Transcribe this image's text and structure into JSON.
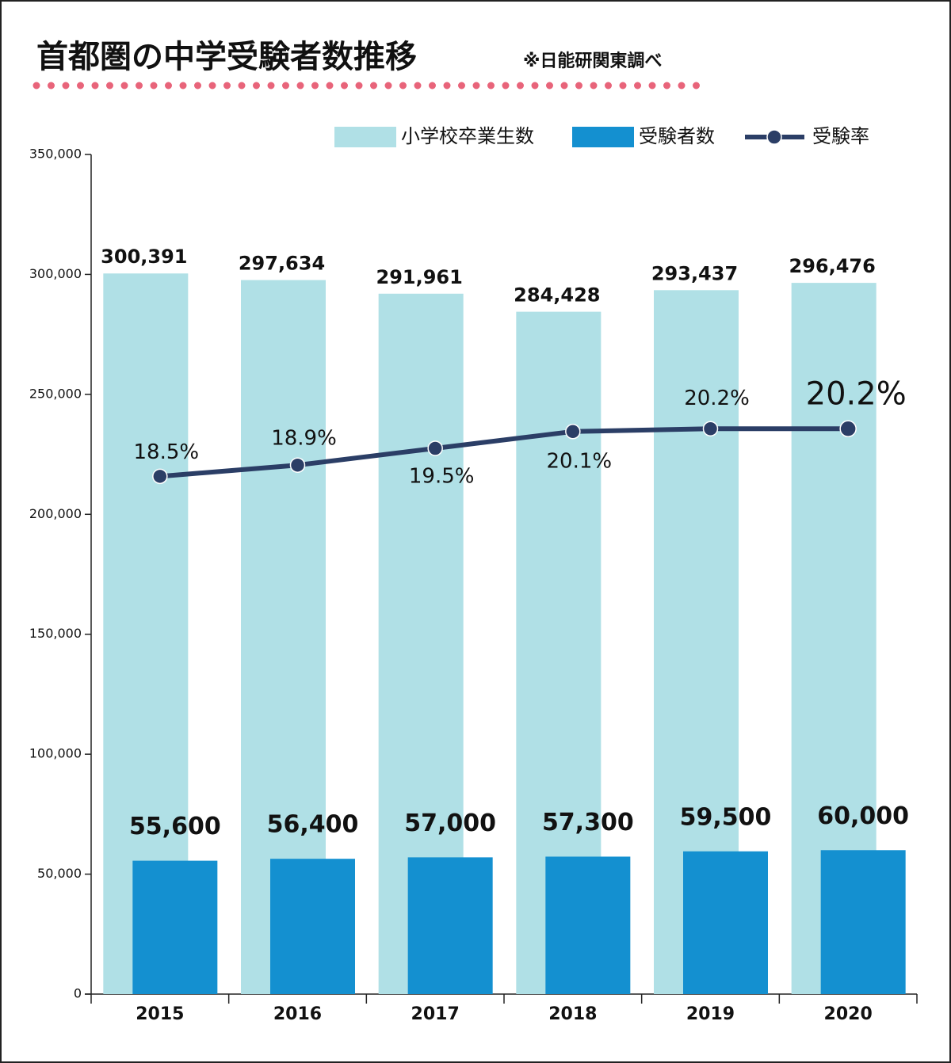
{
  "chart_data": {
    "type": "bar-line",
    "title": "首都圏の中学受験者数推移",
    "subtitle": "※日能研関東調べ",
    "categories": [
      "2015",
      "2016",
      "2017",
      "2018",
      "2019",
      "2020"
    ],
    "series": [
      {
        "name": "小学校卒業生数",
        "type": "bar",
        "color": "#b0e0e6",
        "values": [
          300391,
          297634,
          291961,
          284428,
          293437,
          296476
        ],
        "value_labels": [
          "300,391",
          "297,634",
          "291,961",
          "284,428",
          "293,437",
          "296,476"
        ]
      },
      {
        "name": "受験者数",
        "type": "bar",
        "color": "#1490d0",
        "values": [
          55600,
          56400,
          57000,
          57300,
          59500,
          60000
        ],
        "value_labels": [
          "55,600",
          "56,400",
          "57,000",
          "57,300",
          "59,500",
          "60,000"
        ]
      },
      {
        "name": "受験率",
        "type": "line",
        "axis": "y2",
        "color": "#2b3e66",
        "values": [
          18.5,
          18.9,
          19.5,
          20.1,
          20.2,
          20.2
        ],
        "value_labels": [
          "18.5%",
          "18.9%",
          "19.5%",
          "20.1%",
          "20.2%",
          "20.2%"
        ]
      }
    ],
    "ylim": [
      0,
      350000
    ],
    "yticks": [
      0,
      {
        "value": 50000,
        "label": "50,000"
      },
      {
        "value": 100000,
        "label": "100,000"
      },
      {
        "value": 150000,
        "label": "150,000"
      },
      {
        "value": 200000,
        "label": "200,000"
      },
      {
        "value": 250000,
        "label": "250,000"
      },
      {
        "value": 300000,
        "label": "300,000"
      },
      {
        "value": 350000,
        "label": "350,000"
      }
    ],
    "y2lim": [
      0,
      30
    ],
    "legend": "top-right"
  }
}
